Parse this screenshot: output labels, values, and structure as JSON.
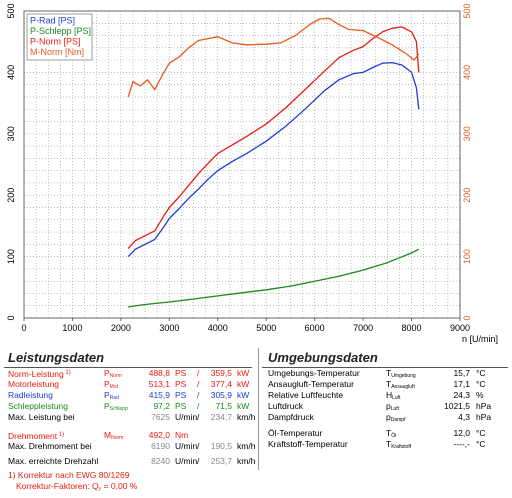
{
  "chart_data": {
    "type": "line",
    "legend": [
      "P-Rad [PS]",
      "P-Schlepp [PS]",
      "P-Norm [PS]",
      "M-Norm [Nm]"
    ],
    "legend_placement": "top-left",
    "xlabel": "n [U/min]",
    "x_ticks": [
      "0",
      "1000",
      "2000",
      "3000",
      "4000",
      "5000",
      "6000",
      "7000",
      "8000",
      "9000"
    ],
    "y_left_ticks": [
      "0",
      "100",
      "200",
      "300",
      "400",
      "500"
    ],
    "y_right_ticks": [
      "0",
      "100",
      "200",
      "300",
      "400",
      "500"
    ],
    "xlim": [
      0,
      9000
    ],
    "ylim": [
      0,
      500
    ],
    "grid": true,
    "colors": {
      "p_rad": "#1f3bd6",
      "p_schlepp": "#1a8a1a",
      "p_norm": "#e81c12",
      "m_norm": "#ea5a1b",
      "right_axis": "#e8631f"
    },
    "series": [
      {
        "name": "P-Rad [PS]",
        "color": "#1f3bd6",
        "x": [
          2150,
          2300,
          2500,
          2700,
          2900,
          3000,
          3200,
          3400,
          3600,
          3800,
          4000,
          4300,
          4600,
          5000,
          5400,
          5800,
          6200,
          6500,
          6800,
          7000,
          7200,
          7400,
          7600,
          7800,
          8000,
          8100,
          8150
        ],
        "values": [
          100,
          112,
          120,
          128,
          150,
          162,
          178,
          195,
          210,
          226,
          240,
          255,
          268,
          288,
          312,
          340,
          370,
          388,
          398,
          400,
          408,
          415,
          416,
          412,
          400,
          375,
          340
        ]
      },
      {
        "name": "P-Schlepp [PS]",
        "color": "#1a8a1a",
        "x": [
          2150,
          2500,
          3000,
          3500,
          4000,
          4500,
          5000,
          5500,
          6000,
          6500,
          7000,
          7500,
          8000,
          8150
        ],
        "values": [
          18,
          22,
          26,
          31,
          36,
          41,
          46,
          52,
          60,
          68,
          78,
          90,
          106,
          112
        ]
      },
      {
        "name": "P-Norm [PS]",
        "color": "#e81c12",
        "x": [
          2150,
          2300,
          2500,
          2700,
          2900,
          3000,
          3200,
          3400,
          3600,
          3800,
          4000,
          4300,
          4600,
          5000,
          5400,
          5800,
          6200,
          6500,
          6800,
          7000,
          7200,
          7400,
          7600,
          7800,
          8000,
          8100,
          8150
        ],
        "values": [
          113,
          126,
          134,
          142,
          168,
          180,
          197,
          216,
          235,
          252,
          268,
          282,
          296,
          316,
          342,
          372,
          402,
          424,
          436,
          442,
          455,
          466,
          472,
          474,
          466,
          450,
          400
        ]
      },
      {
        "name": "M-Norm [Nm]",
        "color": "#ea5a1b",
        "x": [
          2150,
          2250,
          2400,
          2550,
          2700,
          2850,
          3000,
          3200,
          3400,
          3600,
          3800,
          4000,
          4300,
          4600,
          5000,
          5300,
          5600,
          5900,
          6100,
          6300,
          6500,
          6700,
          7000,
          7300,
          7600,
          7900,
          8050,
          8150
        ],
        "values": [
          360,
          385,
          378,
          388,
          372,
          395,
          415,
          425,
          440,
          452,
          455,
          458,
          448,
          445,
          446,
          448,
          460,
          478,
          487,
          488,
          478,
          470,
          468,
          457,
          445,
          430,
          420,
          430
        ]
      }
    ]
  },
  "left_panel": {
    "title": "Leistungsdaten",
    "rows": [
      {
        "label": "Norm-Leistung",
        "footnote": "1)",
        "sym": "P",
        "sub": "Norm",
        "v1": "488,8",
        "u1": "PS",
        "sep": "/",
        "v2": "359,5",
        "u2": "kW",
        "color": "#e81c12"
      },
      {
        "label": "Motorleistung",
        "sym": "P",
        "sub": "Mot",
        "v1": "513,1",
        "u1": "PS",
        "sep": "/",
        "v2": "377,4",
        "u2": "kW",
        "color": "#e81c12"
      },
      {
        "label": "Radleistung",
        "sym": "P",
        "sub": "Rad",
        "v1": "415,9",
        "u1": "PS",
        "sep": "/",
        "v2": "305,9",
        "u2": "kW",
        "color": "#1f3bd6"
      },
      {
        "label": "Schleppleistung",
        "sym": "P",
        "sub": "Schlepp",
        "v1": "97,2",
        "u1": "PS",
        "sep": "/",
        "v2": "71,5",
        "u2": "kW",
        "color": "#1a8a1a"
      },
      {
        "label": "Max. Leistung bei",
        "v1": "7625",
        "u1": "U/min",
        "sep": "/",
        "v2": "234,7",
        "u2": "km/h",
        "color": "#000000"
      },
      {
        "label": "Drehmoment",
        "footnote": "1)",
        "sym": "M",
        "sub": "Norm",
        "v1": "492,0",
        "u1": "Nm",
        "color": "#e81c12"
      },
      {
        "label": "Max. Drehmoment bei",
        "v1": "6190",
        "u1": "U/min",
        "sep": "/",
        "v2": "190,5",
        "u2": "km/h",
        "color": "#000000"
      },
      {
        "label": "Max. erreichte Drehzahl",
        "v1": "8240",
        "u1": "U/min",
        "sep": "/",
        "v2": "253,7",
        "u2": "km/h",
        "color": "#000000"
      }
    ],
    "note1": "1) Korrektur nach EWG 80/1269",
    "note2_label": "Korrektur-Faktoren: Q",
    "note2_sub": "y",
    "note2_value": "= 0,00 %"
  },
  "right_panel": {
    "title": "Umgebungsdaten",
    "rows": [
      {
        "label": "Umgebungs-Temperatur",
        "sym": "T",
        "sub": "Umgebung",
        "value": "15,7",
        "unit": "°C"
      },
      {
        "label": "Ansaugluft-Temperatur",
        "sym": "T",
        "sub": "Ansaugluft",
        "value": "17,1",
        "unit": "°C"
      },
      {
        "label": "Relative Luftfeuchte",
        "sym": "H",
        "sub": "Luft",
        "value": "24,3",
        "unit": "%"
      },
      {
        "label": "Luftdruck",
        "sym": "p",
        "sub": "Luft",
        "value": "1021,5",
        "unit": "hPa"
      },
      {
        "label": "Dampfdruck",
        "sym": "p",
        "sub": "Dampf",
        "value": "4,3",
        "unit": "hPa"
      },
      {
        "label": "Öl-Temperatur",
        "sym": "T",
        "sub": "Öl",
        "value": "12,0",
        "unit": "°C"
      },
      {
        "label": "Kraftstoff-Temperatur",
        "sym": "T",
        "sub": "Kraftstoff",
        "value": "----,-",
        "unit": "°C"
      }
    ]
  }
}
